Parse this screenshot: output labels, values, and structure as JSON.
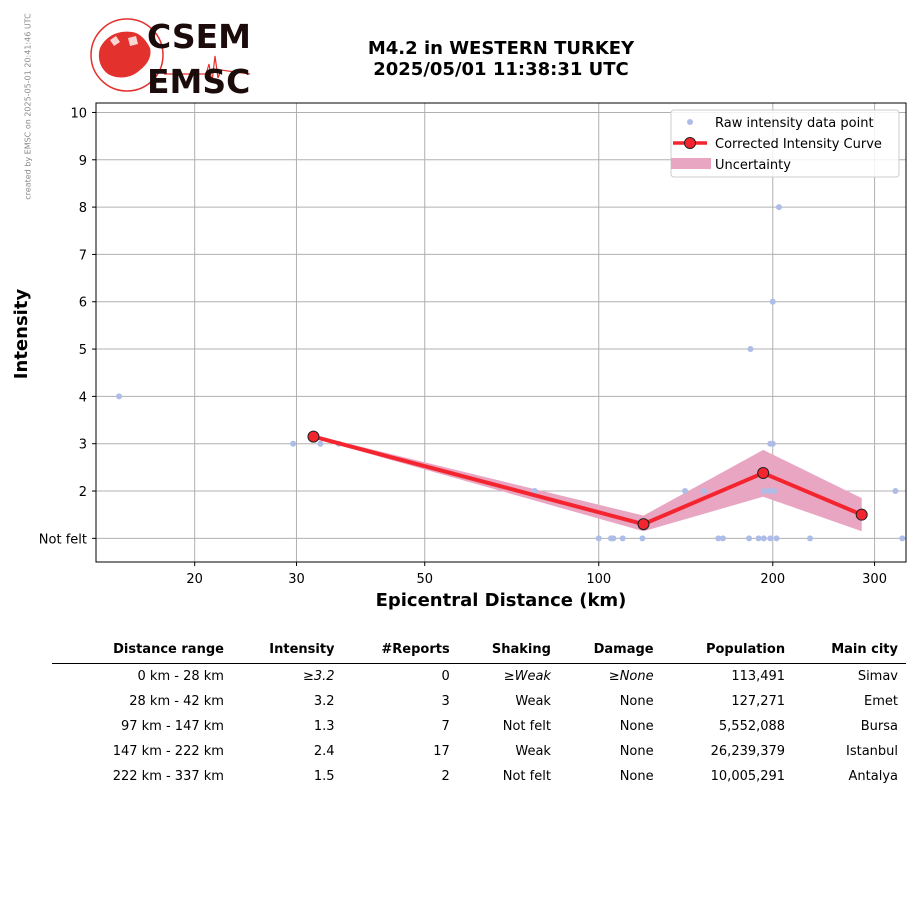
{
  "credit": "created by EMSC on 2025-05-01 20:41:46 UTC",
  "logo": {
    "top": "CSEM",
    "bottom": "EMSC"
  },
  "title": {
    "line1": "M4.2 in WESTERN TURKEY",
    "line2": "2025/05/01 11:38:31 UTC"
  },
  "colors": {
    "raw": "#aebde8",
    "curve": "#f5252f",
    "marker_edge": "#222222",
    "uncertainty": "#e8a6c3",
    "grid": "#b0b0b0"
  },
  "chart_data": {
    "type": "scatter",
    "xlabel": "Epicentral Distance (km)",
    "ylabel": "Intensity",
    "xscale": "log",
    "xlim": [
      13.5,
      340
    ],
    "ylim": [
      0.5,
      10.2
    ],
    "xticks": [
      20,
      30,
      50,
      100,
      200,
      300
    ],
    "xtick_labels": [
      "20",
      "30",
      "50",
      "100",
      "200",
      "300"
    ],
    "yticks": [
      1,
      2,
      3,
      4,
      5,
      6,
      7,
      8,
      9,
      10
    ],
    "ytick_labels": [
      "Not felt",
      "2",
      "3",
      "4",
      "5",
      "6",
      "7",
      "8",
      "9",
      "10"
    ],
    "grid": true,
    "legend_position": "top-right",
    "legend": [
      "Raw intensity data point",
      "Corrected Intensity Curve",
      "Uncertainty"
    ],
    "raw_points": [
      [
        14.8,
        4
      ],
      [
        29.6,
        3
      ],
      [
        33,
        3
      ],
      [
        35.5,
        3
      ],
      [
        77.5,
        2
      ],
      [
        100,
        1
      ],
      [
        105,
        1
      ],
      [
        106,
        1
      ],
      [
        110,
        1
      ],
      [
        119,
        1
      ],
      [
        141,
        2
      ],
      [
        152,
        2
      ],
      [
        161,
        1
      ],
      [
        164,
        1
      ],
      [
        182,
        1
      ],
      [
        183,
        5
      ],
      [
        189,
        1
      ],
      [
        193,
        1
      ],
      [
        193,
        2
      ],
      [
        197,
        2
      ],
      [
        198,
        1
      ],
      [
        198,
        3
      ],
      [
        200,
        3
      ],
      [
        200,
        6
      ],
      [
        201,
        2
      ],
      [
        203,
        1
      ],
      [
        205,
        8
      ],
      [
        232,
        1
      ],
      [
        326,
        2
      ],
      [
        335,
        1
      ]
    ],
    "curve": {
      "x": [
        32.1,
        119.5,
        192.5,
        285
      ],
      "y": [
        3.15,
        1.3,
        2.38,
        1.5
      ]
    },
    "uncertainty": {
      "x": [
        32.1,
        119.5,
        192.5,
        285
      ],
      "lower": [
        3.12,
        1.15,
        1.88,
        1.15
      ],
      "upper": [
        3.18,
        1.48,
        2.87,
        1.85
      ]
    }
  },
  "table": {
    "headers": [
      "Distance range",
      "Intensity",
      "#Reports",
      "Shaking",
      "Damage",
      "Population",
      "Main city"
    ],
    "rows": [
      [
        "0 km -   28 km",
        "≥3.2",
        "0",
        "≥Weak",
        "≥None",
        "113,491",
        "Simav"
      ],
      [
        "28 km -   42 km",
        "3.2",
        "3",
        "Weak",
        "None",
        "127,271",
        "Emet"
      ],
      [
        "97 km -  147 km",
        "1.3",
        "7",
        "Not felt",
        "None",
        "5,552,088",
        "Bursa"
      ],
      [
        "147 km -  222 km",
        "2.4",
        "17",
        "Weak",
        "None",
        "26,239,379",
        "Istanbul"
      ],
      [
        "222 km -  337 km",
        "1.5",
        "2",
        "Not felt",
        "None",
        "10,005,291",
        "Antalya"
      ]
    ]
  }
}
